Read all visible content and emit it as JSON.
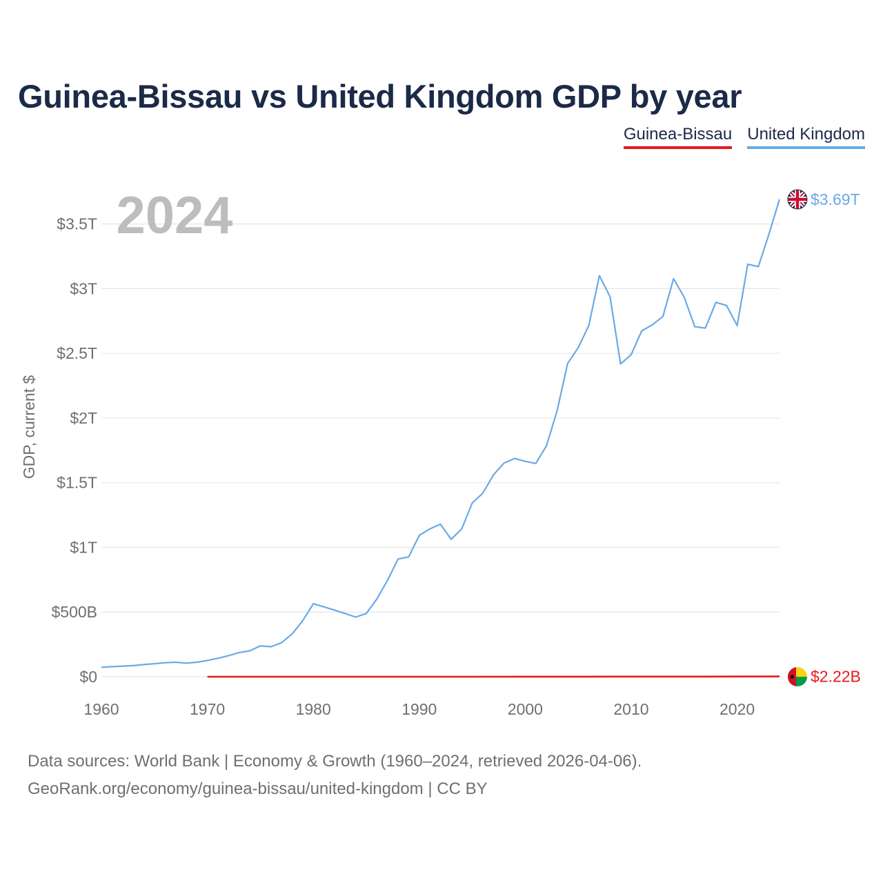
{
  "title": "Guinea-Bissau vs United Kingdom GDP by year",
  "legend": [
    {
      "label": "Guinea-Bissau",
      "color": "#e41a1c"
    },
    {
      "label": "United Kingdom",
      "color": "#6aa9e6"
    }
  ],
  "footer": {
    "line1": "Data sources: World Bank | Economy & Growth (1960–2024, retrieved 2026-04-06).",
    "line2": "GeoRank.org/economy/guinea-bissau/united-kingdom | CC BY"
  },
  "chart_data": {
    "type": "line",
    "year_label": "2024",
    "ylabel": "GDP, current $",
    "xlim": [
      1960,
      2024
    ],
    "ylim": [
      0,
      3690
    ],
    "units": "billions USD",
    "x_ticks": [
      1960,
      1970,
      1980,
      1990,
      2000,
      2010,
      2020
    ],
    "y_ticks": [
      {
        "value": 0,
        "label": "$0"
      },
      {
        "value": 500,
        "label": "$500B"
      },
      {
        "value": 1000,
        "label": "$1T"
      },
      {
        "value": 1500,
        "label": "$1.5T"
      },
      {
        "value": 2000,
        "label": "$2T"
      },
      {
        "value": 2500,
        "label": "$2.5T"
      },
      {
        "value": 3000,
        "label": "$3T"
      },
      {
        "value": 3500,
        "label": "$3.5T"
      }
    ],
    "series": [
      {
        "name": "United Kingdom",
        "color": "#6aa9e6",
        "end_label": "$3.69T",
        "x": [
          1960,
          1961,
          1962,
          1963,
          1964,
          1965,
          1966,
          1967,
          1968,
          1969,
          1970,
          1971,
          1972,
          1973,
          1974,
          1975,
          1976,
          1977,
          1978,
          1979,
          1980,
          1981,
          1982,
          1983,
          1984,
          1985,
          1986,
          1987,
          1988,
          1989,
          1990,
          1991,
          1992,
          1993,
          1994,
          1995,
          1996,
          1997,
          1998,
          1999,
          2000,
          2001,
          2002,
          2003,
          2004,
          2005,
          2006,
          2007,
          2008,
          2009,
          2010,
          2011,
          2012,
          2013,
          2014,
          2015,
          2016,
          2017,
          2018,
          2019,
          2020,
          2021,
          2022,
          2023,
          2024
        ],
        "values": [
          73,
          78,
          82,
          86,
          94,
          101,
          108,
          112,
          105,
          112,
          126,
          143,
          163,
          187,
          200,
          239,
          232,
          263,
          331,
          433,
          564,
          540,
          515,
          489,
          461,
          489,
          601,
          745,
          910,
          926,
          1093,
          1142,
          1180,
          1062,
          1141,
          1344,
          1419,
          1560,
          1652,
          1687,
          1665,
          1649,
          1785,
          2054,
          2421,
          2544,
          2714,
          3100,
          2938,
          2417,
          2491,
          2674,
          2720,
          2785,
          3077,
          2934,
          2706,
          2695,
          2894,
          2870,
          2714,
          3188,
          3170,
          3420,
          3690
        ]
      },
      {
        "name": "Guinea-Bissau",
        "color": "#e41a1c",
        "end_label": "$2.22B",
        "x": [
          1970,
          1975,
          1980,
          1985,
          1990,
          1995,
          2000,
          2005,
          2010,
          2015,
          2020,
          2024
        ],
        "values": [
          0.08,
          0.14,
          0.11,
          0.17,
          0.24,
          0.25,
          0.37,
          0.59,
          0.85,
          1.05,
          1.43,
          2.22
        ]
      }
    ]
  }
}
